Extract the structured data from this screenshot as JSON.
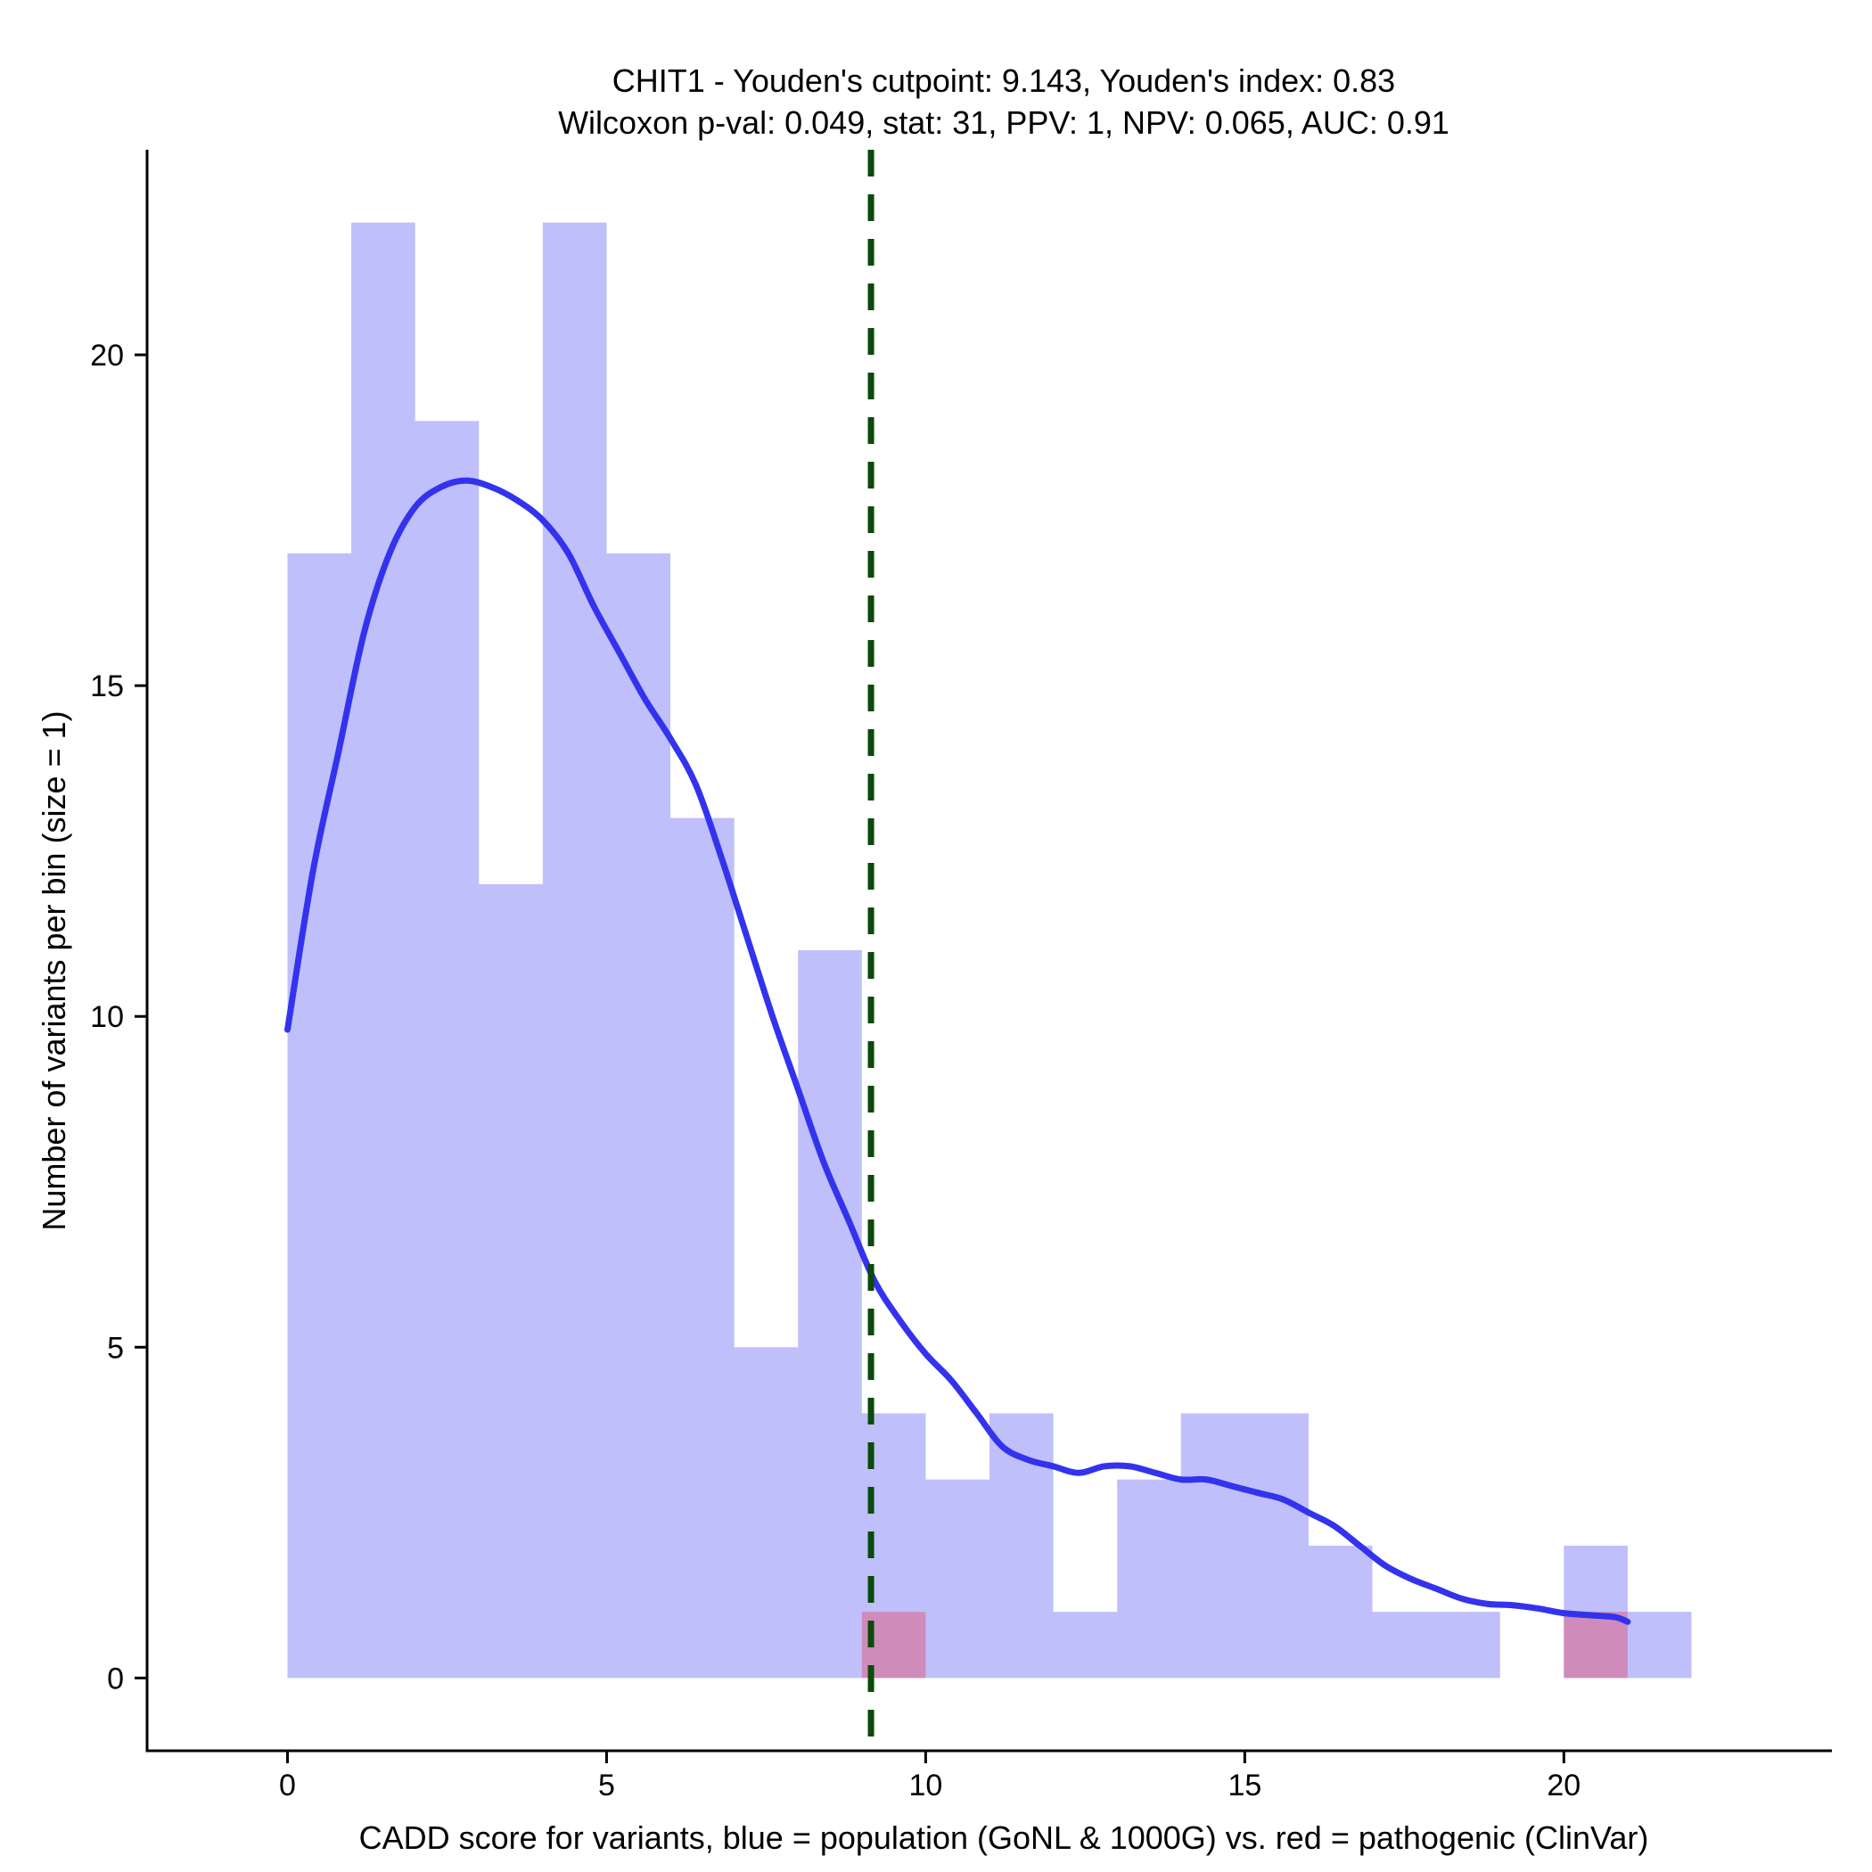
{
  "chart_data": {
    "type": "bar",
    "title_line1": "CHIT1 - Youden's cutpoint: 9.143, Youden's index: 0.83",
    "title_line2": "Wilcoxon p-val: 0.049, stat: 31, PPV: 1, NPV: 0.065, AUC: 0.91",
    "xlabel": "CADD score for variants, blue = population (GoNL & 1000G) vs. red = pathogenic (ClinVar)",
    "ylabel": "Number of variants per bin (size = 1)",
    "xlim": [
      -2.2,
      24.2
    ],
    "ylim": [
      -1.1,
      23.1
    ],
    "x_ticks": [
      0,
      5,
      10,
      15,
      20
    ],
    "x_tick_labels": [
      "0",
      "5",
      "10",
      "15",
      "20"
    ],
    "y_ticks": [
      0,
      5,
      10,
      15,
      20
    ],
    "y_tick_labels": [
      "0",
      "5",
      "10",
      "15",
      "20"
    ],
    "bin_size": 1,
    "series": [
      {
        "name": "population (GoNL & 1000G)",
        "color": "#8080f7",
        "opacity": 0.5,
        "bins": [
          {
            "start": 0,
            "value": 17
          },
          {
            "start": 1,
            "value": 22
          },
          {
            "start": 2,
            "value": 19
          },
          {
            "start": 3,
            "value": 12
          },
          {
            "start": 4,
            "value": 22
          },
          {
            "start": 5,
            "value": 17
          },
          {
            "start": 6,
            "value": 13
          },
          {
            "start": 7,
            "value": 5
          },
          {
            "start": 8,
            "value": 11
          },
          {
            "start": 9,
            "value": 4
          },
          {
            "start": 10,
            "value": 3
          },
          {
            "start": 11,
            "value": 4
          },
          {
            "start": 12,
            "value": 1
          },
          {
            "start": 13,
            "value": 3
          },
          {
            "start": 14,
            "value": 4
          },
          {
            "start": 15,
            "value": 4
          },
          {
            "start": 16,
            "value": 2
          },
          {
            "start": 17,
            "value": 1
          },
          {
            "start": 18,
            "value": 1
          },
          {
            "start": 19,
            "value": 0
          },
          {
            "start": 20,
            "value": 2
          },
          {
            "start": 21,
            "value": 1
          }
        ]
      },
      {
        "name": "pathogenic (ClinVar)",
        "color": "#e05a7a",
        "opacity": 0.5,
        "bins": [
          {
            "start": 9,
            "value": 1
          },
          {
            "start": 20,
            "value": 1
          }
        ]
      }
    ],
    "density_curve": {
      "name": "population density",
      "color": "#3333ee",
      "points": [
        [
          0,
          9.8
        ],
        [
          0.4,
          12.2
        ],
        [
          0.8,
          14.0
        ],
        [
          1.2,
          15.8
        ],
        [
          1.6,
          17.0
        ],
        [
          2.0,
          17.7
        ],
        [
          2.4,
          18.0
        ],
        [
          2.8,
          18.1
        ],
        [
          3.2,
          18.0
        ],
        [
          3.6,
          17.8
        ],
        [
          4.0,
          17.5
        ],
        [
          4.4,
          17.0
        ],
        [
          4.8,
          16.2
        ],
        [
          5.2,
          15.5
        ],
        [
          5.6,
          14.8
        ],
        [
          6.0,
          14.2
        ],
        [
          6.4,
          13.5
        ],
        [
          6.8,
          12.4
        ],
        [
          7.2,
          11.2
        ],
        [
          7.6,
          10.0
        ],
        [
          8.0,
          8.9
        ],
        [
          8.4,
          7.8
        ],
        [
          8.8,
          6.9
        ],
        [
          9.2,
          6.0
        ],
        [
          9.6,
          5.4
        ],
        [
          10.0,
          4.9
        ],
        [
          10.4,
          4.5
        ],
        [
          10.8,
          4.0
        ],
        [
          11.2,
          3.5
        ],
        [
          11.6,
          3.3
        ],
        [
          12.0,
          3.2
        ],
        [
          12.4,
          3.1
        ],
        [
          12.8,
          3.2
        ],
        [
          13.2,
          3.2
        ],
        [
          13.6,
          3.1
        ],
        [
          14.0,
          3.0
        ],
        [
          14.4,
          3.0
        ],
        [
          14.8,
          2.9
        ],
        [
          15.2,
          2.8
        ],
        [
          15.6,
          2.7
        ],
        [
          16.0,
          2.5
        ],
        [
          16.4,
          2.3
        ],
        [
          16.8,
          2.0
        ],
        [
          17.2,
          1.7
        ],
        [
          17.6,
          1.5
        ],
        [
          18.0,
          1.35
        ],
        [
          18.4,
          1.2
        ],
        [
          18.8,
          1.12
        ],
        [
          19.2,
          1.1
        ],
        [
          19.6,
          1.05
        ],
        [
          20.0,
          0.98
        ],
        [
          20.4,
          0.95
        ],
        [
          20.8,
          0.92
        ],
        [
          21.0,
          0.85
        ]
      ]
    },
    "cutpoint": {
      "label": "Youden's cutpoint",
      "x": 9.143,
      "color": "#0a4a0a"
    }
  }
}
